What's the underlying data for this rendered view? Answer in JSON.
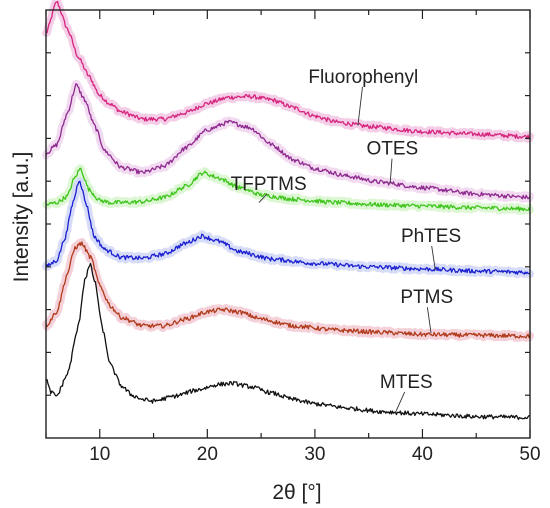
{
  "chart_data": {
    "type": "line",
    "xlabel": "2θ [°]",
    "ylabel": "Intensity [a.u.]",
    "xlim": [
      5,
      50
    ],
    "ylim": [
      0,
      10
    ],
    "x_ticks": [
      10,
      20,
      30,
      40,
      50
    ],
    "y_ticks_labeled": false,
    "grid": false,
    "legend": "inline labels",
    "series": [
      {
        "name": "Fluorophenyl",
        "color": "#d6257f",
        "band_color": "#f2c4e3",
        "points": [
          [
            5,
            9.45
          ],
          [
            6,
            10.2
          ],
          [
            7,
            9.55
          ],
          [
            8,
            8.9
          ],
          [
            9,
            8.45
          ],
          [
            10,
            8.0
          ],
          [
            11,
            7.8
          ],
          [
            12,
            7.62
          ],
          [
            14,
            7.45
          ],
          [
            16,
            7.45
          ],
          [
            18,
            7.6
          ],
          [
            20,
            7.82
          ],
          [
            22,
            7.96
          ],
          [
            24,
            7.98
          ],
          [
            26,
            7.9
          ],
          [
            28,
            7.72
          ],
          [
            30,
            7.52
          ],
          [
            32,
            7.38
          ],
          [
            35,
            7.28
          ],
          [
            40,
            7.16
          ],
          [
            45,
            7.1
          ],
          [
            50,
            7.04
          ]
        ]
      },
      {
        "name": "OTES",
        "color": "#8e2a8f",
        "band_color": "#f0d4ee",
        "points": [
          [
            5,
            6.65
          ],
          [
            6,
            6.85
          ],
          [
            7,
            7.6
          ],
          [
            7.8,
            8.25
          ],
          [
            8.6,
            7.9
          ],
          [
            9.5,
            7.3
          ],
          [
            10.5,
            6.7
          ],
          [
            12,
            6.32
          ],
          [
            14,
            6.2
          ],
          [
            16,
            6.35
          ],
          [
            18,
            6.78
          ],
          [
            20,
            7.2
          ],
          [
            22,
            7.38
          ],
          [
            24,
            7.25
          ],
          [
            26,
            6.85
          ],
          [
            28,
            6.5
          ],
          [
            30,
            6.3
          ],
          [
            33,
            6.12
          ],
          [
            36,
            5.98
          ],
          [
            40,
            5.85
          ],
          [
            45,
            5.7
          ],
          [
            50,
            5.62
          ]
        ]
      },
      {
        "name": "TFPTMS",
        "color": "#3ec61c",
        "band_color": "#d7f5cc",
        "points": [
          [
            5,
            5.45
          ],
          [
            6,
            5.5
          ],
          [
            7,
            5.65
          ],
          [
            7.6,
            6.05
          ],
          [
            8.2,
            6.3
          ],
          [
            9,
            5.8
          ],
          [
            10,
            5.55
          ],
          [
            11,
            5.5
          ],
          [
            12,
            5.5
          ],
          [
            14,
            5.52
          ],
          [
            16,
            5.62
          ],
          [
            18,
            5.88
          ],
          [
            19.6,
            6.2
          ],
          [
            21,
            6.08
          ],
          [
            23,
            5.85
          ],
          [
            25,
            5.68
          ],
          [
            28,
            5.58
          ],
          [
            32,
            5.5
          ],
          [
            36,
            5.45
          ],
          [
            40,
            5.42
          ],
          [
            45,
            5.38
          ],
          [
            50,
            5.35
          ]
        ]
      },
      {
        "name": "PhTES",
        "color": "#1a1fd0",
        "band_color": "#d0d6f7",
        "points": [
          [
            5,
            4.0
          ],
          [
            6,
            4.15
          ],
          [
            6.8,
            4.7
          ],
          [
            7.5,
            5.5
          ],
          [
            8.1,
            6.05
          ],
          [
            8.7,
            5.5
          ],
          [
            9.5,
            4.7
          ],
          [
            10.5,
            4.4
          ],
          [
            12,
            4.22
          ],
          [
            14,
            4.2
          ],
          [
            16,
            4.3
          ],
          [
            18,
            4.55
          ],
          [
            19.5,
            4.72
          ],
          [
            21,
            4.6
          ],
          [
            23,
            4.35
          ],
          [
            26,
            4.18
          ],
          [
            30,
            4.08
          ],
          [
            35,
            4.0
          ],
          [
            40,
            3.95
          ],
          [
            45,
            3.9
          ],
          [
            50,
            3.87
          ]
        ]
      },
      {
        "name": "PTMS",
        "color": "#b03a1a",
        "band_color": "#f2c9d2",
        "points": [
          [
            5,
            2.62
          ],
          [
            6,
            2.95
          ],
          [
            7,
            3.85
          ],
          [
            7.7,
            4.45
          ],
          [
            8.3,
            4.55
          ],
          [
            9.2,
            4.2
          ],
          [
            10,
            3.55
          ],
          [
            11,
            3.08
          ],
          [
            12,
            2.82
          ],
          [
            14,
            2.62
          ],
          [
            16,
            2.62
          ],
          [
            18,
            2.78
          ],
          [
            20,
            2.95
          ],
          [
            21.5,
            3.0
          ],
          [
            23,
            2.94
          ],
          [
            25,
            2.78
          ],
          [
            28,
            2.62
          ],
          [
            32,
            2.52
          ],
          [
            36,
            2.47
          ],
          [
            40,
            2.42
          ],
          [
            45,
            2.4
          ],
          [
            50,
            2.38
          ]
        ]
      },
      {
        "name": "MTES",
        "color": "#111111",
        "band_color": "",
        "points": [
          [
            5,
            1.4
          ],
          [
            5.4,
            1.08
          ],
          [
            6,
            0.98
          ],
          [
            7,
            1.5
          ],
          [
            8,
            2.6
          ],
          [
            8.6,
            3.7
          ],
          [
            9.1,
            4.05
          ],
          [
            9.6,
            3.6
          ],
          [
            10.2,
            2.6
          ],
          [
            11,
            1.7
          ],
          [
            12,
            1.22
          ],
          [
            13,
            1.0
          ],
          [
            14,
            0.9
          ],
          [
            15,
            0.86
          ],
          [
            17,
            0.98
          ],
          [
            19,
            1.12
          ],
          [
            21,
            1.25
          ],
          [
            22.3,
            1.28
          ],
          [
            24,
            1.2
          ],
          [
            26,
            1.05
          ],
          [
            28,
            0.9
          ],
          [
            30,
            0.8
          ],
          [
            33,
            0.7
          ],
          [
            36,
            0.62
          ],
          [
            40,
            0.56
          ],
          [
            45,
            0.5
          ],
          [
            50,
            0.48
          ]
        ]
      }
    ],
    "annotations": [
      {
        "text": "Fluorophenyl",
        "series": "Fluorophenyl",
        "text_x": 34.5,
        "text_y": 8.3,
        "point": [
          34,
          7.3
        ]
      },
      {
        "text": "OTES",
        "series": "OTES",
        "text_x": 37.2,
        "text_y": 6.62,
        "point": [
          37,
          5.95
        ]
      },
      {
        "text": "TFPTMS",
        "series": "TFPTMS",
        "text_x": 25.7,
        "text_y": 5.8,
        "point": [
          24.8,
          5.5
        ]
      },
      {
        "text": "PhTES",
        "series": "PhTES",
        "text_x": 40.8,
        "text_y": 4.58,
        "point": [
          41.2,
          3.92
        ]
      },
      {
        "text": "PTMS",
        "series": "PTMS",
        "text_x": 40.4,
        "text_y": 3.15,
        "point": [
          40.8,
          2.45
        ]
      },
      {
        "text": "MTES",
        "series": "MTES",
        "text_x": 38.5,
        "text_y": 1.17,
        "point": [
          37.5,
          0.6
        ]
      }
    ]
  }
}
